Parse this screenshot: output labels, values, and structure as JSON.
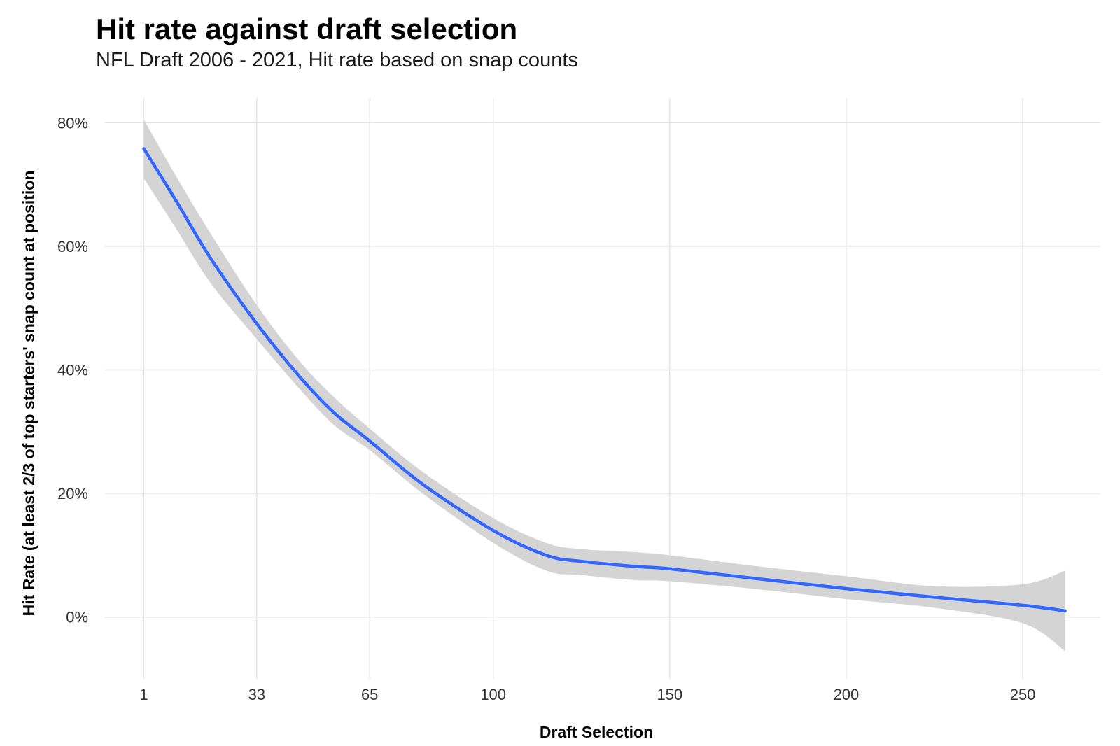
{
  "chart_data": {
    "type": "line",
    "title": "Hit rate against draft selection",
    "subtitle": "NFL Draft 2006 - 2021, Hit rate based on snap counts",
    "xlabel": "Draft Selection",
    "ylabel": "Hit Rate (at least 2/3 of top starters' snap count at position",
    "x_ticks": [
      1,
      33,
      65,
      100,
      150,
      200,
      250
    ],
    "y_ticks": [
      0,
      20,
      40,
      60,
      80
    ],
    "y_tick_labels": [
      "0%",
      "20%",
      "40%",
      "60%",
      "80%"
    ],
    "xlim": [
      -10,
      272
    ],
    "ylim": [
      -10,
      84
    ],
    "grid": true,
    "series": [
      {
        "color": "#3366ff",
        "band_color": "#d4d4d4",
        "x": [
          1,
          10,
          20,
          33,
          45,
          55,
          65,
          80,
          100,
          115,
          125,
          140,
          150,
          175,
          200,
          225,
          250,
          262
        ],
        "y": [
          75.8,
          67.5,
          58.0,
          47.5,
          39.0,
          33.0,
          28.5,
          21.5,
          14.0,
          10.0,
          9.0,
          8.2,
          7.8,
          6.2,
          4.6,
          3.2,
          1.9,
          1.0
        ],
        "lower": [
          71.0,
          63.0,
          54.0,
          45.0,
          37.0,
          31.0,
          27.0,
          20.0,
          12.0,
          7.5,
          6.8,
          6.0,
          5.8,
          4.5,
          2.9,
          1.5,
          -1.0,
          -5.5
        ],
        "upper": [
          80.5,
          71.5,
          62.0,
          50.5,
          41.5,
          35.5,
          30.5,
          23.5,
          16.0,
          12.0,
          11.0,
          10.5,
          10.0,
          8.2,
          6.6,
          5.0,
          5.3,
          7.5
        ]
      }
    ]
  }
}
